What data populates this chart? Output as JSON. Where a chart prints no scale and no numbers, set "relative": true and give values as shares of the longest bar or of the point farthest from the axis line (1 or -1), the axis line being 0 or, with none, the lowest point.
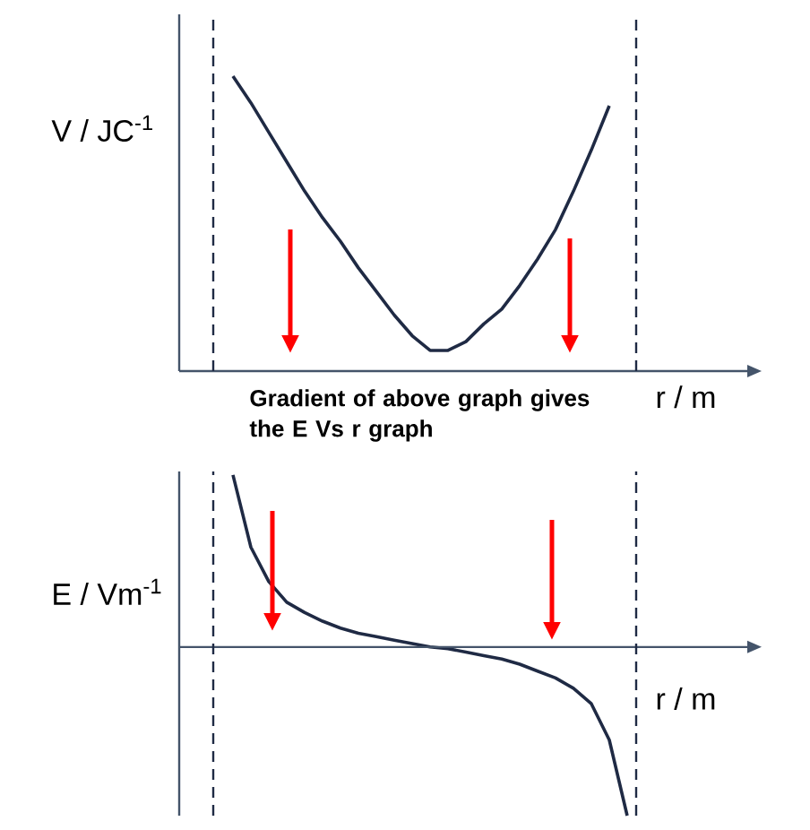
{
  "chart_data": [
    {
      "type": "line",
      "relative": true,
      "ylabel": "V / JC$^{-1}$",
      "xlabel": "r / m",
      "categories": [
        null,
        null,
        null,
        null,
        null,
        null,
        null,
        null,
        null,
        null,
        null,
        null,
        null,
        null,
        null,
        null,
        null,
        null,
        null,
        null,
        null,
        null,
        null,
        null,
        null,
        null,
        null,
        null,
        null,
        null,
        null,
        null,
        null
      ],
      "series": [
        {
          "color": "#1f2a44",
          "values": [
            null,
            null,
            null,
            1.0,
            0.91,
            0.81,
            0.71,
            0.61,
            0.52,
            0.44,
            0.35,
            0.27,
            0.19,
            0.12,
            0.07,
            0.07,
            0.1,
            0.16,
            0.21,
            0.29,
            0.38,
            0.48,
            0.61,
            0.75,
            0.9,
            null,
            null,
            null,
            null,
            null,
            null,
            null,
            null
          ]
        }
      ],
      "annotations": [
        "Gradient of above graph gives the E Vs r graph"
      ]
    },
    {
      "type": "line",
      "relative": true,
      "ylabel": "E / Vm$^{-1}$",
      "xlabel": "r / m",
      "categories": [
        null,
        null,
        null,
        null,
        null,
        null,
        null,
        null,
        null,
        null,
        null,
        null,
        null,
        null,
        null,
        null,
        null,
        null,
        null,
        null,
        null,
        null,
        null,
        null,
        null,
        null,
        null,
        null,
        null,
        null,
        null,
        null,
        null
      ],
      "series": [
        {
          "color": "#1f2a44",
          "values": [
            null,
            null,
            null,
            1.0,
            0.58,
            0.38,
            0.26,
            0.2,
            0.15,
            0.11,
            0.08,
            0.06,
            0.04,
            0.02,
            0.0,
            -0.01,
            -0.03,
            -0.05,
            -0.07,
            -0.1,
            -0.14,
            -0.18,
            -0.24,
            -0.33,
            -0.54,
            -0.98,
            null,
            null,
            null,
            null,
            null,
            null,
            null
          ]
        }
      ]
    }
  ]
}
